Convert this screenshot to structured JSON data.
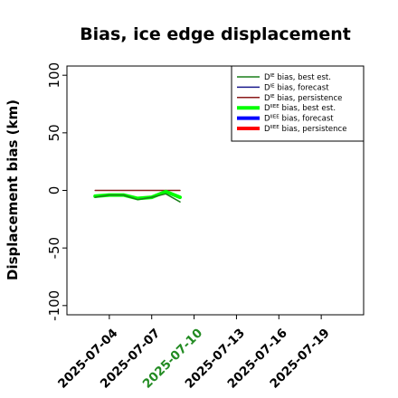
{
  "chart_data": {
    "type": "line",
    "title": "Bias, ice edge displacement",
    "xlabel": "",
    "ylabel": "Displacement bias (km)",
    "xlim": [
      "2025-07-01",
      "2025-07-22"
    ],
    "ylim": [
      -108,
      108
    ],
    "yticks": [
      100,
      50,
      0,
      -50,
      -100
    ],
    "xticks": [
      "2025-07-04",
      "2025-07-07",
      "2025-07-10",
      "2025-07-13",
      "2025-07-16",
      "2025-07-19"
    ],
    "highlight_xtick": "2025-07-10",
    "highlight_color": "#228B22",
    "grid": false,
    "legend_position": "top-right",
    "series": [
      {
        "name": "D^IE bias, best est.",
        "color": "#1a7f1a",
        "width": 1.5,
        "x": [
          "2025-07-03",
          "2025-07-04",
          "2025-07-05",
          "2025-07-06",
          "2025-07-07",
          "2025-07-08",
          "2025-07-09"
        ],
        "y": [
          -6,
          -4,
          -4,
          -8,
          -6,
          -3,
          -10
        ]
      },
      {
        "name": "D^IE bias, forecast",
        "color": "#1a1a8c",
        "width": 1.5,
        "x": [],
        "y": []
      },
      {
        "name": "D^IE bias, persistence",
        "color": "#8b1a1a",
        "width": 1.5,
        "x": [
          "2025-07-03",
          "2025-07-09"
        ],
        "y": [
          0,
          0
        ]
      },
      {
        "name": "D^IIEE bias, best est.",
        "color": "#00ff00",
        "width": 4,
        "x": [
          "2025-07-03",
          "2025-07-04",
          "2025-07-05",
          "2025-07-06",
          "2025-07-07",
          "2025-07-08",
          "2025-07-09"
        ],
        "y": [
          -5,
          -4,
          -4,
          -7,
          -6,
          -1,
          -6
        ]
      },
      {
        "name": "D^IIEE bias, forecast",
        "color": "#0000ff",
        "width": 4,
        "x": [],
        "y": []
      },
      {
        "name": "D^IIEE bias, persistence",
        "color": "#ff0000",
        "width": 4,
        "x": [],
        "y": []
      }
    ],
    "legend": [
      {
        "base": "D",
        "sup": "IE",
        "text": " bias, best est."
      },
      {
        "base": "D",
        "sup": "IE",
        "text": " bias, forecast"
      },
      {
        "base": "D",
        "sup": "IE",
        "text": " bias, persistence"
      },
      {
        "base": "D",
        "sup": "IIEE",
        "text": " bias, best est."
      },
      {
        "base": "D",
        "sup": "IIEE",
        "text": " bias, forecast"
      },
      {
        "base": "D",
        "sup": "IIEE",
        "text": " bias, persistence"
      }
    ]
  }
}
